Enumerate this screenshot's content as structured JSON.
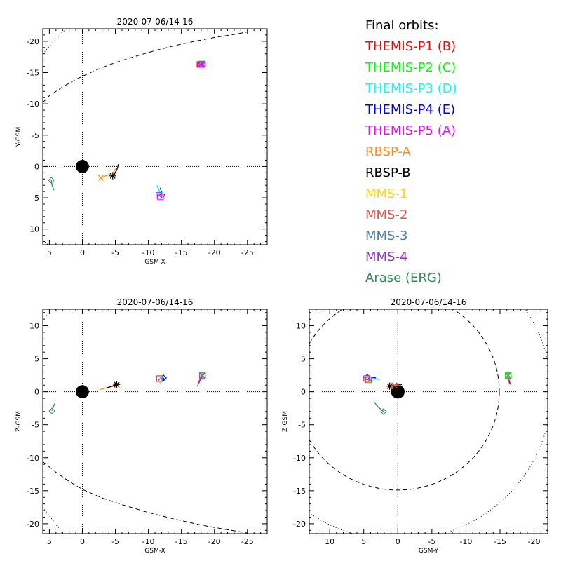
{
  "legend": {
    "title": "Final orbits:",
    "items": [
      {
        "label": "THEMIS-P1 (B)",
        "color": "#ff0000"
      },
      {
        "label": "THEMIS-P2 (C)",
        "color": "#00ff00"
      },
      {
        "label": "THEMIS-P3 (D)",
        "color": "#00ffff"
      },
      {
        "label": "THEMIS-P4 (E)",
        "color": "#0000ff"
      },
      {
        "label": "THEMIS-P5 (A)",
        "color": "#ff00ff"
      },
      {
        "label": "RBSP-A",
        "color": "#ff8c1a"
      },
      {
        "label": "RBSP-B",
        "color": "#000000"
      },
      {
        "label": "MMS-1",
        "color": "#ffd700"
      },
      {
        "label": "MMS-2",
        "color": "#e5524a"
      },
      {
        "label": "MMS-3",
        "color": "#4682b4"
      },
      {
        "label": "MMS-4",
        "color": "#9932cc"
      },
      {
        "label": "Arase (ERG)",
        "color": "#2e8b57"
      }
    ]
  },
  "chart_data": [
    {
      "type": "scatter",
      "title": "2020-07-06/14-16",
      "xlabel": "GSM-X",
      "ylabel": "Y-GSM",
      "xlim": [
        6,
        -28
      ],
      "ylim": [
        12.5,
        -22
      ],
      "xticks": [
        5,
        0,
        -5,
        -10,
        -15,
        -20,
        -25
      ],
      "yticks": [
        -20,
        -15,
        -10,
        -5,
        0,
        5,
        10
      ],
      "grid": false,
      "earth": {
        "x": 0,
        "y": 0,
        "radius": 1
      },
      "zero_lines": true,
      "boundaries": [
        {
          "name": "magnetopause",
          "style": "dashed",
          "points": [
            [
              6,
              -10.2
            ],
            [
              5,
              -11.3
            ],
            [
              3,
              -12.7
            ],
            [
              1,
              -13.9
            ],
            [
              -1,
              -14.9
            ],
            [
              -3,
              -15.8
            ],
            [
              -5,
              -16.6
            ],
            [
              -8,
              -17.6
            ],
            [
              -11,
              -18.5
            ],
            [
              -14,
              -19.3
            ],
            [
              -17,
              -20
            ],
            [
              -20,
              -20.6
            ],
            [
              -23,
              -21.1
            ],
            [
              -25,
              -21.5
            ]
          ]
        },
        {
          "name": "bow-shock",
          "style": "dotted",
          "points": [
            [
              6,
              -18
            ],
            [
              4.5,
              -19.8
            ],
            [
              3,
              -21.5
            ],
            [
              2.4,
              -22
            ]
          ]
        },
        {
          "name": "bow-shock-south",
          "style": "dotted",
          "points": [
            [
              6,
              11.8
            ],
            [
              5.2,
              12.5
            ]
          ]
        }
      ],
      "series": [
        {
          "name": "THEMIS-P1 (B)",
          "color": "#ff0000",
          "marker": "box-x",
          "points": [
            [
              -18.2,
              -16.3
            ],
            [
              -17.8,
              -16.3
            ]
          ]
        },
        {
          "name": "THEMIS-P2 (C)",
          "color": "#00ff00",
          "marker": "box-x",
          "points": [
            [
              -18.5,
              -16.4
            ],
            [
              -18.1,
              -16.4
            ]
          ]
        },
        {
          "name": "THEMIS-P5 (A)",
          "color": "#ff00ff",
          "marker": "box-x",
          "points": [
            [
              -17.4,
              -16.2
            ],
            [
              -18.2,
              -16.3
            ]
          ]
        },
        {
          "name": "MMS-4",
          "color": "#9932cc",
          "marker": "box-x",
          "points": [
            [
              -18.3,
              -16.4
            ],
            [
              -17.9,
              -16.3
            ]
          ]
        },
        {
          "name": "THEMIS-P3 (D)",
          "color": "#00ffff",
          "marker": "diamond",
          "points": [
            [
              -11.3,
              3
            ],
            [
              -11.6,
              3.8
            ],
            [
              -11.8,
              4.4
            ]
          ]
        },
        {
          "name": "THEMIS-P4 (E)",
          "color": "#0000ff",
          "marker": "diamond",
          "points": [
            [
              -11.8,
              3.4
            ],
            [
              -12,
              4.1
            ],
            [
              -12.1,
              4.6
            ]
          ]
        },
        {
          "name": "MMS-1",
          "color": "#ffd700",
          "marker": "square",
          "points": [
            [
              -11.6,
              4.2
            ],
            [
              -11.7,
              4.6
            ]
          ]
        },
        {
          "name": "MMS-3",
          "color": "#4682b4",
          "marker": "square",
          "points": [
            [
              -11.5,
              4.3
            ],
            [
              -11.6,
              4.6
            ]
          ]
        },
        {
          "name": "THEMIS-P5 (A) ",
          "color": "#ff00ff",
          "marker": "square",
          "points": [
            [
              -11.7,
              4.5
            ],
            [
              -11.8,
              4.8
            ]
          ]
        },
        {
          "name": "RBSP-A",
          "color": "#ff8c1a",
          "marker": "x",
          "points": [
            [
              -5.2,
              0.2
            ],
            [
              -4.7,
              0.9
            ],
            [
              -3.8,
              1.4
            ],
            [
              -2.8,
              1.8
            ]
          ]
        },
        {
          "name": "RBSP-B",
          "color": "#000000",
          "marker": "asterisk",
          "points": [
            [
              -5.5,
              -0.4
            ],
            [
              -5.2,
              0.6
            ],
            [
              -4.6,
              1.5
            ]
          ]
        },
        {
          "name": "Arase (ERG)",
          "color": "#2e8b57",
          "marker": "diamond",
          "points": [
            [
              4.3,
              3.8
            ],
            [
              4.6,
              3
            ],
            [
              4.7,
              2.2
            ]
          ]
        }
      ]
    },
    {
      "type": "scatter",
      "title": "2020-07-06/14-16",
      "xlabel": "GSM-X",
      "ylabel": "Z-GSM",
      "xlim": [
        6,
        -28
      ],
      "ylim": [
        -21.5,
        12.5
      ],
      "xticks": [
        5,
        0,
        -5,
        -10,
        -15,
        -20,
        -25
      ],
      "yticks": [
        -20,
        -15,
        -10,
        -5,
        0,
        5,
        10
      ],
      "grid": false,
      "earth": {
        "x": 0,
        "y": 0,
        "radius": 1
      },
      "zero_lines": true,
      "boundaries": [
        {
          "name": "magnetopause",
          "style": "dashed",
          "points": [
            [
              6,
              -10.6
            ],
            [
              4,
              -12.2
            ],
            [
              2,
              -13.6
            ],
            [
              0,
              -14.8
            ],
            [
              -3,
              -16.1
            ],
            [
              -6,
              -17.1
            ],
            [
              -10,
              -18.3
            ],
            [
              -14,
              -19.3
            ],
            [
              -18,
              -20.2
            ],
            [
              -22,
              -20.9
            ],
            [
              -25,
              -21.4
            ]
          ]
        },
        {
          "name": "bow-shock",
          "style": "dotted",
          "points": [
            [
              6,
              -17.5
            ],
            [
              5,
              -18.8
            ],
            [
              4,
              -20.1
            ],
            [
              3,
              -21.5
            ]
          ]
        },
        {
          "name": "bow-shock-north",
          "style": "dotted",
          "points": [
            [
              5.4,
              11.5
            ],
            [
              5.1,
              12.3
            ]
          ]
        }
      ],
      "series": [
        {
          "name": "THEMIS-P1 (B)",
          "color": "#ff0000",
          "marker": "box-x",
          "points": [
            [
              -17.6,
              1.4
            ],
            [
              -18,
              2.2
            ],
            [
              -18.2,
              2.5
            ]
          ]
        },
        {
          "name": "THEMIS-P2 (C)",
          "color": "#00ff00",
          "marker": "box-x",
          "points": [
            [
              -18.1,
              2.3
            ],
            [
              -18.2,
              2.5
            ]
          ]
        },
        {
          "name": "MMS-4",
          "color": "#9932cc",
          "marker": "box-x",
          "points": [
            [
              -17.4,
              0.8
            ],
            [
              -17.9,
              1.8
            ],
            [
              -18.2,
              2.4
            ]
          ]
        },
        {
          "name": "THEMIS-P3 (D)",
          "color": "#00ffff",
          "marker": "diamond",
          "points": [
            [
              -11.8,
              1.2
            ],
            [
              -12,
              1.8
            ],
            [
              -12.2,
              2.1
            ]
          ]
        },
        {
          "name": "THEMIS-P4 (E)",
          "color": "#0000ff",
          "marker": "diamond",
          "points": [
            [
              -12.4,
              1.6
            ],
            [
              -12.3,
              2.1
            ]
          ]
        },
        {
          "name": "MMS-1",
          "color": "#ffd700",
          "marker": "square",
          "points": [
            [
              -11.6,
              1.6
            ],
            [
              -11.7,
              1.9
            ]
          ]
        },
        {
          "name": "THEMIS-P5 (A)",
          "color": "#ff00ff",
          "marker": "square",
          "points": [
            [
              -11.5,
              1.7
            ],
            [
              -11.7,
              2
            ]
          ]
        },
        {
          "name": "RBSP-A",
          "color": "#ff8c1a",
          "marker": "x",
          "points": [
            [
              -2.6,
              0.3
            ],
            [
              -3.6,
              0.6
            ],
            [
              -4.6,
              0.8
            ],
            [
              -5.2,
              1
            ]
          ]
        },
        {
          "name": "RBSP-B",
          "color": "#000000",
          "marker": "asterisk",
          "points": [
            [
              -3.8,
              0.6
            ],
            [
              -4.5,
              0.85
            ],
            [
              -5.2,
              1.1
            ]
          ]
        },
        {
          "name": "Arase (ERG)",
          "color": "#2e8b57",
          "marker": "diamond",
          "points": [
            [
              4.1,
              -1.6
            ],
            [
              4.4,
              -2.3
            ],
            [
              4.6,
              -2.9
            ]
          ]
        }
      ]
    },
    {
      "type": "scatter",
      "title": "2020-07-06/14-16",
      "xlabel": "GSM-Y",
      "ylabel": "Z-GSM",
      "xlim": [
        13,
        -22
      ],
      "ylim": [
        -21.5,
        12.5
      ],
      "xticks": [
        10,
        5,
        0,
        -5,
        -10,
        -15,
        -20
      ],
      "yticks": [
        -20,
        -15,
        -10,
        -5,
        0,
        5,
        10
      ],
      "grid": false,
      "earth": {
        "x": 0,
        "y": 0,
        "radius": 1
      },
      "zero_lines": true,
      "boundaries": [
        {
          "name": "magnetopause",
          "style": "dashed",
          "circle": {
            "cx": 0,
            "cy": 0,
            "r": 14.9
          }
        },
        {
          "name": "bow-shock",
          "style": "dotted",
          "circle": {
            "cx": 0,
            "cy": 0,
            "r": 22.5
          }
        }
      ],
      "series": [
        {
          "name": "THEMIS-P1 (B)",
          "color": "#ff0000",
          "marker": "box-x",
          "points": [
            [
              -16.4,
              1.2
            ],
            [
              -16.2,
              2.1
            ],
            [
              -16.2,
              2.5
            ]
          ]
        },
        {
          "name": "MMS-4",
          "color": "#9932cc",
          "marker": "box-x",
          "points": [
            [
              -16.6,
              1
            ],
            [
              -16.3,
              1.9
            ],
            [
              -16.2,
              2.4
            ]
          ]
        },
        {
          "name": "THEMIS-P2 (C)",
          "color": "#00ff00",
          "marker": "box-x",
          "points": [
            [
              -16.3,
              2.3
            ],
            [
              -16.2,
              2.5
            ]
          ]
        },
        {
          "name": "THEMIS-P3 (D)",
          "color": "#00ffff",
          "marker": "diamond",
          "points": [
            [
              2.6,
              1.9
            ],
            [
              3.5,
              2
            ],
            [
              4.3,
              2.1
            ]
          ]
        },
        {
          "name": "THEMIS-P4 (E)",
          "color": "#0000ff",
          "marker": "diamond",
          "points": [
            [
              3.2,
              2.1
            ],
            [
              3.9,
              2.2
            ],
            [
              4.5,
              2.2
            ]
          ]
        },
        {
          "name": "MMS-1",
          "color": "#ffd700",
          "marker": "square",
          "points": [
            [
              3.8,
              1.8
            ],
            [
              4.4,
              1.9
            ]
          ]
        },
        {
          "name": "THEMIS-P5 (A)",
          "color": "#ff00ff",
          "marker": "square",
          "points": [
            [
              4.2,
              1.8
            ],
            [
              4.6,
              2
            ]
          ]
        },
        {
          "name": "MMS-3",
          "color": "#4682b4",
          "marker": "square",
          "points": [
            [
              3.5,
              1.6
            ],
            [
              4.3,
              1.8
            ]
          ]
        },
        {
          "name": "RBSP-A",
          "color": "#ff8c1a",
          "marker": "x",
          "points": [
            [
              -0.4,
              1
            ],
            [
              0.4,
              0.9
            ],
            [
              1.1,
              0.8
            ]
          ]
        },
        {
          "name": "RBSP-B",
          "color": "#000000",
          "marker": "asterisk",
          "points": [
            [
              -0.6,
              1.1
            ],
            [
              0.3,
              1
            ],
            [
              1.2,
              0.85
            ]
          ]
        },
        {
          "name": "MMS-2",
          "color": "#e5524a",
          "marker": "x",
          "points": [
            [
              -0.5,
              1
            ],
            [
              0.5,
              0.95
            ]
          ]
        },
        {
          "name": "Arase (ERG)",
          "color": "#2e8b57",
          "marker": "diamond",
          "points": [
            [
              3.5,
              -1.5
            ],
            [
              2.9,
              -2.3
            ],
            [
              2.1,
              -3
            ]
          ]
        }
      ]
    }
  ]
}
